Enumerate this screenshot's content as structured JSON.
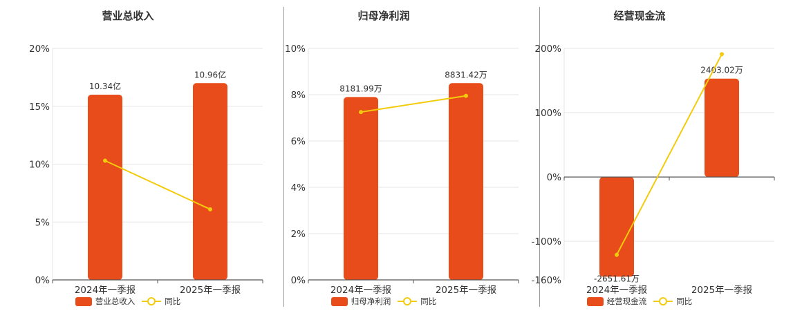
{
  "colors": {
    "bar": "#E84C1A",
    "line": "#F2CC0C",
    "grid": "#e6e6e6",
    "axis": "#555555"
  },
  "legend_line_label": "同比",
  "chart_data": [
    {
      "type": "bar",
      "title": "营业总收入",
      "categories": [
        "2024年一季报",
        "2025年一季报"
      ],
      "ylim": [
        0,
        20
      ],
      "yticks": [
        0,
        5,
        10,
        15,
        20
      ],
      "tick_labels": [
        "0%",
        "5%",
        "10%",
        "15%",
        "20%"
      ],
      "bar_values": [
        16,
        17
      ],
      "bar_labels": [
        "10.34亿",
        "10.96亿"
      ],
      "line_values": [
        10.3,
        6.1
      ],
      "series": [
        {
          "name": "营业总收入",
          "type": "bar"
        },
        {
          "name": "同比",
          "type": "line"
        }
      ],
      "grid": true,
      "legend": "bottom"
    },
    {
      "type": "bar",
      "title": "归母净利润",
      "categories": [
        "2024年一季报",
        "2025年一季报"
      ],
      "ylim": [
        0,
        10
      ],
      "yticks": [
        0,
        2,
        4,
        6,
        8,
        10
      ],
      "tick_labels": [
        "0%",
        "2%",
        "4%",
        "6%",
        "8%",
        "10%"
      ],
      "bar_values": [
        7.9,
        8.5
      ],
      "bar_labels": [
        "8181.99万",
        "8831.42万"
      ],
      "line_values": [
        7.25,
        7.95
      ],
      "series": [
        {
          "name": "归母净利润",
          "type": "bar"
        },
        {
          "name": "同比",
          "type": "line"
        }
      ],
      "grid": true,
      "legend": "bottom"
    },
    {
      "type": "bar",
      "title": "经营现金流",
      "categories": [
        "2024年一季报",
        "2025年一季报"
      ],
      "ylim": [
        -160,
        200
      ],
      "yticks": [
        -160,
        -100,
        0,
        100,
        200
      ],
      "tick_labels": [
        "-160%",
        "-100%",
        "0%",
        "100%",
        "200%"
      ],
      "bar_values": [
        -155,
        153
      ],
      "bar_labels": [
        "-2651.61万",
        "2403.02万"
      ],
      "line_values": [
        -121,
        191
      ],
      "series": [
        {
          "name": "经营现金流",
          "type": "bar"
        },
        {
          "name": "同比",
          "type": "line"
        }
      ],
      "grid": true,
      "legend": "bottom"
    }
  ]
}
